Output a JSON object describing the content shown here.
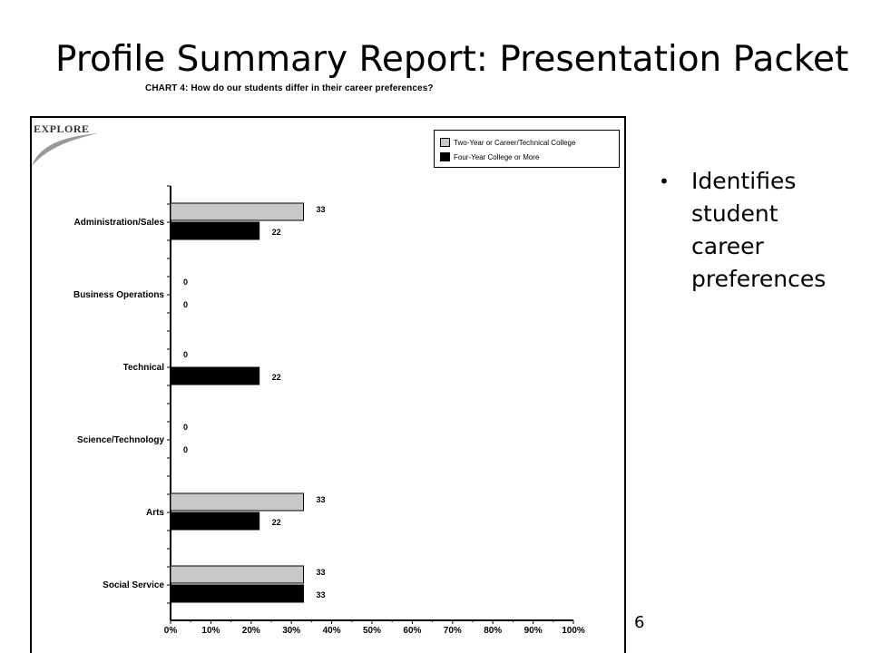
{
  "slide": {
    "title": "Profile Summary Report: Presentation Packet",
    "page_number": "6",
    "bullets": [
      "Identifies student career preferences"
    ]
  },
  "logo": {
    "text": "EXPLORE"
  },
  "chart_data": {
    "type": "bar",
    "orientation": "horizontal",
    "title": "CHART 4: How do our students differ in their career preferences?",
    "categories": [
      "Administration/Sales",
      "Business Operations",
      "Technical",
      "Science/Technology",
      "Arts",
      "Social Service"
    ],
    "series": [
      {
        "name": "Two-Year or Career/Technical College",
        "values": [
          33,
          0,
          0,
          0,
          33,
          33
        ],
        "color": "#c8c8c8"
      },
      {
        "name": "Four-Year College or More",
        "values": [
          22,
          0,
          22,
          0,
          22,
          33
        ],
        "color": "#000000"
      }
    ],
    "xlim": [
      0,
      100
    ],
    "xticks": [
      "0%",
      "10%",
      "20%",
      "30%",
      "40%",
      "50%",
      "60%",
      "70%",
      "80%",
      "90%",
      "100%"
    ],
    "grid": false,
    "legend_position": "top-right"
  }
}
